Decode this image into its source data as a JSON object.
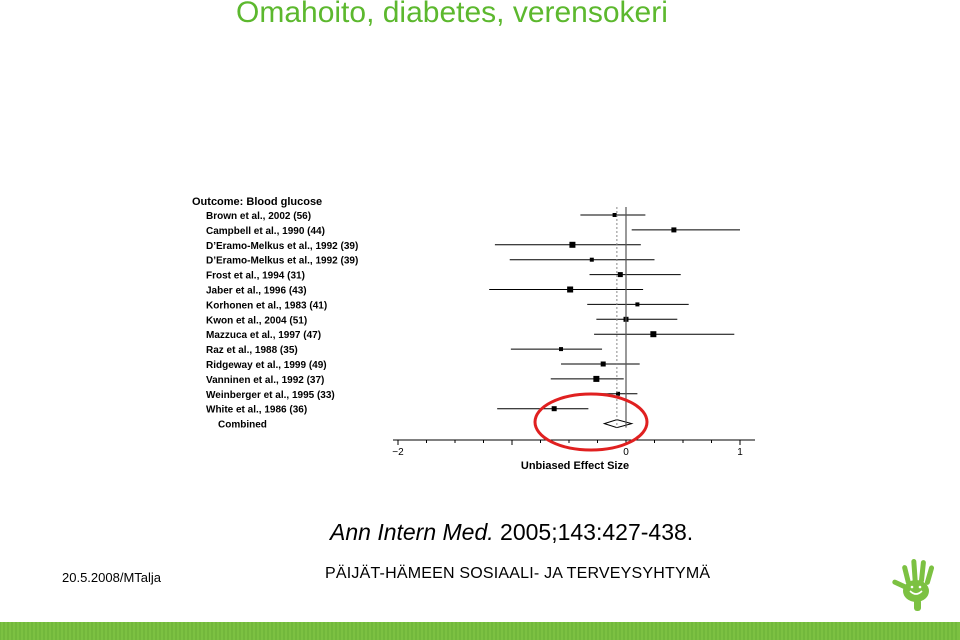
{
  "slide": {
    "title": "Omahoito, diabetes, verensokeri",
    "citation_journal": "Ann Intern Med.",
    "citation_ref": " 2005;143:427-438.",
    "footer_date": "20.5.2008/MTalja",
    "footer_org": "PÄIJÄT-HÄMEEN SOSIAALI- JA TERVEYSYHTYMÄ",
    "logo_icon": "green-hand-logo-icon",
    "colors": {
      "title": "#5cb82e",
      "bar": "#7cc142",
      "highlight": "#e02020"
    }
  },
  "chart_data": {
    "type": "forest",
    "header": "Outcome: Blood glucose",
    "xlabel": "Unbiased Effect Size",
    "xlim": [
      -2,
      1
    ],
    "xticks": [
      "−2",
      "0",
      "1"
    ],
    "xtick_values": [
      -2,
      0,
      1
    ],
    "studies": [
      {
        "label": "Brown et al., 2002 (56)",
        "effect": -0.1,
        "ci": [
          -0.4,
          0.17
        ]
      },
      {
        "label": "Campbell et al., 1990 (44)",
        "effect": 0.42,
        "ci": [
          0.05,
          1.0
        ]
      },
      {
        "label": "D’Eramo-Melkus et al., 1992 (39)",
        "effect": -0.47,
        "ci": [
          -1.15,
          0.13
        ]
      },
      {
        "label": "D’Eramo-Melkus et al., 1992 (39)",
        "effect": -0.3,
        "ci": [
          -1.02,
          0.25
        ]
      },
      {
        "label": "Frost et al., 1994 (31)",
        "effect": -0.05,
        "ci": [
          -0.32,
          0.48
        ]
      },
      {
        "label": "Jaber et al., 1996 (43)",
        "effect": -0.49,
        "ci": [
          -1.2,
          0.15
        ]
      },
      {
        "label": "Korhonen et al., 1983 (41)",
        "effect": 0.1,
        "ci": [
          -0.34,
          0.55
        ]
      },
      {
        "label": "Kwon et al., 2004 (51)",
        "effect": 0.0,
        "ci": [
          -0.26,
          0.45
        ]
      },
      {
        "label": "Mazzuca et al., 1997 (47)",
        "effect": 0.24,
        "ci": [
          -0.28,
          0.95
        ]
      },
      {
        "label": "Raz et al., 1988 (35)",
        "effect": -0.57,
        "ci": [
          -1.01,
          -0.21
        ]
      },
      {
        "label": "Ridgeway et al., 1999 (49)",
        "effect": -0.2,
        "ci": [
          -0.57,
          0.12
        ]
      },
      {
        "label": "Vanninen et al., 1992 (37)",
        "effect": -0.26,
        "ci": [
          -0.66,
          -0.02
        ]
      },
      {
        "label": "Weinberger et al., 1995 (33)",
        "effect": -0.07,
        "ci": [
          -0.22,
          0.1
        ]
      },
      {
        "label": "White et al., 1986 (36)",
        "effect": -0.63,
        "ci": [
          -1.13,
          -0.33
        ]
      }
    ],
    "combined": {
      "label": "Combined",
      "effect": -0.08,
      "ci": [
        -0.19,
        0.05
      ]
    }
  }
}
